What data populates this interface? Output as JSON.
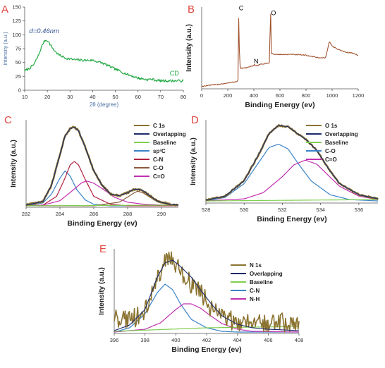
{
  "panels": [
    {
      "id": "A",
      "letter": "A",
      "letter_color": "#e0443e",
      "type": "line",
      "xlabel": "2θ (degree)",
      "ylabel": "Intensity (a.u.)",
      "xlabel_color": "#4a6fa5",
      "ylabel_color": "#4a6fa5",
      "xlim": [
        10,
        80
      ],
      "xticks": [
        10,
        20,
        30,
        40,
        50,
        60,
        70,
        80
      ],
      "ylim": [
        0,
        150
      ],
      "yticks": [
        0,
        25,
        50,
        75,
        100,
        125,
        150
      ],
      "annotations": [
        {
          "text": "d=0.46nm",
          "x": 12,
          "y": 103,
          "color": "#2f4f8f",
          "italic": true
        },
        {
          "text": "CD",
          "x": 74,
          "y": 27,
          "color": "#22aa44",
          "italic": false
        }
      ],
      "series": [
        {
          "color": "#22aa44",
          "width": 1.2,
          "noise": 2.2,
          "x": [
            10,
            12,
            14,
            16,
            18,
            19,
            20,
            21,
            23,
            25,
            28,
            32,
            36,
            40,
            45,
            50,
            55,
            60,
            64,
            66,
            68,
            70,
            75,
            80
          ],
          "y": [
            35,
            39,
            46,
            62,
            84,
            90,
            90,
            84,
            72,
            64,
            58,
            55,
            54,
            54,
            48,
            38,
            29,
            22,
            19,
            20,
            18,
            17,
            17,
            17
          ]
        }
      ]
    },
    {
      "id": "B",
      "letter": "B",
      "letter_color": "#e0443e",
      "type": "line",
      "xlabel": "Binding Energy (ev)",
      "ylabel": "Intensity (a.u.)",
      "xlim": [
        0,
        1200
      ],
      "xticks": [
        0,
        200,
        400,
        600,
        800,
        1000,
        1200
      ],
      "ylim": [
        0,
        100
      ],
      "yticks": [],
      "annotations": [
        {
          "text": "C",
          "x": 285,
          "y": 96,
          "color": "#000000",
          "italic": false
        },
        {
          "text": "N",
          "x": 400,
          "y": 31,
          "color": "#000000",
          "italic": false
        },
        {
          "text": "O",
          "x": 532,
          "y": 90,
          "color": "#000000",
          "italic": false
        }
      ],
      "series": [
        {
          "color": "#a0522d",
          "width": 1.1,
          "noise": 0.6,
          "x": [
            0,
            100,
            200,
            270,
            280,
            284,
            286,
            290,
            300,
            350,
            398,
            402,
            410,
            450,
            500,
            520,
            526,
            530,
            534,
            545,
            560,
            600,
            700,
            800,
            900,
            950,
            970,
            978,
            990,
            1000,
            1050,
            1100,
            1150,
            1200
          ],
          "y": [
            3,
            5,
            7,
            9,
            11,
            94,
            96,
            32,
            25,
            26,
            28,
            31,
            28,
            30,
            31,
            32,
            88,
            93,
            43,
            43,
            42,
            42,
            42,
            41,
            38,
            38,
            52,
            58,
            55,
            52,
            48,
            45,
            44,
            41
          ]
        }
      ]
    },
    {
      "id": "C",
      "letter": "C",
      "letter_color": "#e0443e",
      "type": "line",
      "xlabel": "Binding Energy (ev)",
      "ylabel": "Intensity (a.u.)",
      "xlim": [
        282,
        291
      ],
      "xticks": [
        282,
        284,
        286,
        288,
        290
      ],
      "ylim": [
        0,
        120
      ],
      "yticks": [],
      "legend": [
        {
          "label": "C 1s",
          "color": "#8b7330"
        },
        {
          "label": "Overlapping",
          "color": "#1c2b6b"
        },
        {
          "label": "Baseline",
          "color": "#7fcf4f"
        },
        {
          "label": "sp³C",
          "color": "#3a82c8"
        },
        {
          "label": "C-N",
          "color": "#b02040"
        },
        {
          "label": "C-O",
          "color": "#8b5a3c"
        },
        {
          "label": "C=O",
          "color": "#c030b0"
        }
      ],
      "series": [
        {
          "color": "#3a82c8",
          "width": 1.2,
          "noise": 0,
          "x": [
            282,
            283,
            283.5,
            284,
            284.3,
            284.6,
            285,
            285.5,
            286,
            287,
            288,
            291
          ],
          "y": [
            2,
            6,
            18,
            40,
            50,
            43,
            24,
            10,
            4,
            2,
            2,
            2
          ]
        },
        {
          "color": "#b02040",
          "width": 1.2,
          "noise": 0,
          "x": [
            282,
            283,
            283.8,
            284.3,
            284.6,
            284.85,
            285.1,
            285.5,
            286,
            287,
            288,
            291
          ],
          "y": [
            2,
            3,
            15,
            40,
            58,
            63,
            58,
            38,
            15,
            4,
            2,
            2
          ]
        },
        {
          "color": "#c030b0",
          "width": 1.2,
          "noise": 0,
          "x": [
            282,
            283,
            284,
            284.8,
            285.3,
            285.6,
            286,
            286.6,
            287.2,
            288,
            289,
            291
          ],
          "y": [
            2,
            3,
            9,
            24,
            34,
            36,
            33,
            24,
            14,
            7,
            4,
            2
          ]
        },
        {
          "color": "#8b5a3c",
          "width": 1.2,
          "noise": 0,
          "x": [
            282,
            286,
            287.5,
            288,
            288.4,
            288.6,
            288.9,
            289.3,
            289.8,
            290.5,
            291
          ],
          "y": [
            2,
            2,
            7,
            14,
            20,
            22,
            20,
            14,
            7,
            3,
            2
          ]
        },
        {
          "color": "#7fcf4f",
          "width": 1.2,
          "noise": 0,
          "x": [
            282,
            291
          ],
          "y": [
            2,
            3
          ]
        },
        {
          "color": "#8b7330",
          "width": 2.6,
          "noise": 1.2,
          "x": [
            282,
            283,
            283.5,
            284,
            284.3,
            284.6,
            284.85,
            285.1,
            285.5,
            286,
            286.5,
            287,
            287.5,
            288,
            288.3,
            288.6,
            288.9,
            289.3,
            289.8,
            290.5,
            291
          ],
          "y": [
            3,
            8,
            30,
            72,
            98,
            108,
            110,
            105,
            82,
            50,
            30,
            18,
            16,
            20,
            24,
            25,
            23,
            16,
            8,
            4,
            3
          ]
        },
        {
          "color": "#1c2b6b",
          "width": 1.1,
          "noise": 0,
          "x": [
            282,
            283,
            283.5,
            284,
            284.3,
            284.6,
            284.85,
            285.1,
            285.5,
            286,
            286.5,
            287,
            287.5,
            288,
            288.3,
            288.6,
            288.9,
            289.3,
            289.8,
            290.5,
            291
          ],
          "y": [
            3,
            8,
            30,
            72,
            98,
            108,
            110,
            105,
            82,
            50,
            30,
            18,
            16,
            20,
            24,
            25,
            23,
            16,
            8,
            4,
            3
          ]
        }
      ]
    },
    {
      "id": "D",
      "letter": "D",
      "letter_color": "#e0443e",
      "type": "line",
      "xlabel": "Binding Energy (ev)",
      "ylabel": "Intensity (a.u.)",
      "xlim": [
        528,
        537
      ],
      "xticks": [
        528,
        530,
        532,
        534,
        536
      ],
      "ylim": [
        0,
        120
      ],
      "yticks": [],
      "legend": [
        {
          "label": "O 1s",
          "color": "#8b7330"
        },
        {
          "label": "Overlapping",
          "color": "#1c2b6b"
        },
        {
          "label": "Baseline",
          "color": "#7fcf4f"
        },
        {
          "label": "C-O",
          "color": "#3a82c8"
        },
        {
          "label": "C=O",
          "color": "#c030b0"
        }
      ],
      "series": [
        {
          "color": "#3a82c8",
          "width": 1.2,
          "noise": 0,
          "x": [
            528,
            529,
            530,
            530.8,
            531.3,
            531.8,
            532.3,
            532.8,
            533.5,
            534.5,
            535.5,
            537
          ],
          "y": [
            3,
            8,
            28,
            60,
            80,
            85,
            78,
            58,
            32,
            12,
            5,
            3
          ]
        },
        {
          "color": "#c030b0",
          "width": 1.2,
          "noise": 0,
          "x": [
            528,
            530,
            531,
            532,
            532.6,
            533.2,
            533.8,
            534.4,
            535,
            536,
            537
          ],
          "y": [
            3,
            6,
            15,
            38,
            55,
            62,
            56,
            40,
            24,
            10,
            5
          ]
        },
        {
          "color": "#7fcf4f",
          "width": 1.2,
          "noise": 0,
          "x": [
            528,
            537
          ],
          "y": [
            3,
            5
          ]
        },
        {
          "color": "#8b7330",
          "width": 2.6,
          "noise": 1,
          "x": [
            528,
            529,
            530,
            530.8,
            531.3,
            531.8,
            532.3,
            532.8,
            533.3,
            533.8,
            534.4,
            535,
            536,
            537
          ],
          "y": [
            4,
            10,
            32,
            72,
            100,
            112,
            110,
            100,
            90,
            76,
            50,
            28,
            12,
            6
          ]
        },
        {
          "color": "#1c2b6b",
          "width": 1.1,
          "noise": 0,
          "x": [
            528,
            529,
            530,
            530.8,
            531.3,
            531.8,
            532.3,
            532.8,
            533.3,
            533.8,
            534.4,
            535,
            536,
            537
          ],
          "y": [
            4,
            10,
            32,
            72,
            100,
            112,
            110,
            100,
            90,
            76,
            50,
            28,
            12,
            6
          ]
        }
      ]
    },
    {
      "id": "E",
      "letter": "E",
      "letter_color": "#e0443e",
      "type": "line",
      "xlabel": "Binding Energy (ev)",
      "ylabel": "Intensity (a.u.)",
      "xlim": [
        396,
        408
      ],
      "xticks": [
        396,
        398,
        400,
        402,
        404,
        406,
        408
      ],
      "ylim": [
        0,
        120
      ],
      "yticks": [],
      "legend": [
        {
          "label": "N 1s",
          "color": "#8b7330"
        },
        {
          "label": "Overlapping",
          "color": "#1c2b6b"
        },
        {
          "label": "Baseline",
          "color": "#7fcf4f"
        },
        {
          "label": "C-N",
          "color": "#3a82c8"
        },
        {
          "label": "N-H",
          "color": "#c030b0"
        }
      ],
      "series": [
        {
          "color": "#3a82c8",
          "width": 1.2,
          "noise": 0,
          "x": [
            396,
            397,
            398,
            398.8,
            399.3,
            399.8,
            400.3,
            401,
            402,
            403,
            404,
            408
          ],
          "y": [
            2,
            8,
            28,
            58,
            70,
            62,
            42,
            20,
            8,
            3,
            2,
            2
          ]
        },
        {
          "color": "#c030b0",
          "width": 1.2,
          "noise": 0,
          "x": [
            396,
            398,
            399,
            400,
            400.5,
            401,
            401.6,
            402.2,
            403,
            404,
            405,
            408
          ],
          "y": [
            2,
            6,
            15,
            34,
            42,
            42,
            36,
            26,
            14,
            6,
            3,
            2
          ]
        },
        {
          "color": "#7fcf4f",
          "width": 1.2,
          "noise": 0,
          "x": [
            396,
            402,
            408
          ],
          "y": [
            3,
            8,
            10
          ]
        },
        {
          "color": "#8b7330",
          "width": 1.6,
          "noise": 14,
          "x": [
            396,
            397,
            398,
            398.8,
            399.3,
            399.8,
            400.3,
            401,
            401.6,
            402.3,
            403,
            404,
            405,
            406,
            407,
            408
          ],
          "y": [
            20,
            18,
            32,
            80,
            100,
            105,
            90,
            70,
            58,
            36,
            22,
            16,
            18,
            15,
            16,
            15
          ]
        },
        {
          "color": "#1c2b6b",
          "width": 1.1,
          "noise": 0,
          "x": [
            396,
            397,
            398,
            398.8,
            399.3,
            399.8,
            400.3,
            401,
            401.6,
            402.3,
            403,
            404,
            405,
            406,
            408
          ],
          "y": [
            4,
            12,
            34,
            80,
            100,
            104,
            95,
            80,
            62,
            42,
            25,
            13,
            8,
            6,
            4
          ]
        }
      ]
    }
  ]
}
